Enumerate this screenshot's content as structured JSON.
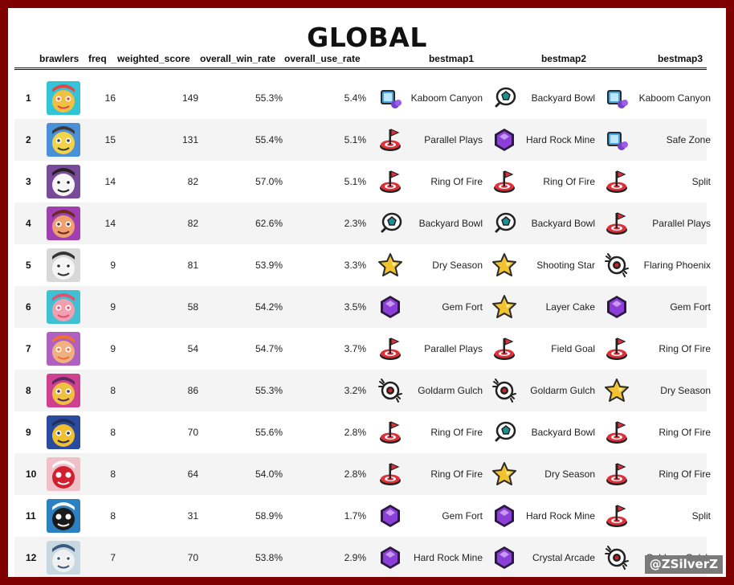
{
  "title": "GLOBAL",
  "watermark": "@ZSilverZ",
  "columns": {
    "brawlers": "brawlers",
    "freq": "freq",
    "weighted_score": "weighted_score",
    "overall_win_rate": "overall_win_rate",
    "overall_use_rate": "overall_use_rate",
    "bestmap1": "bestmap1",
    "bestmap2": "bestmap2",
    "bestmap3": "bestmap3"
  },
  "mode_icons": {
    "heist": {
      "icon": "heist-safe-icon",
      "color": "#4aa8e0"
    },
    "brawl_ball": {
      "icon": "brawl-ball-icon",
      "color": "#1f8f93"
    },
    "hot_zone": {
      "icon": "hot-zone-flag-icon",
      "color": "#e0303a"
    },
    "gem_grab": {
      "icon": "gem-grab-icon",
      "color": "#8c3fd8"
    },
    "bounty": {
      "icon": "bounty-star-icon",
      "color": "#f2c230"
    },
    "knockout": {
      "icon": "knockout-icon",
      "color": "#d32424"
    }
  },
  "rows": [
    {
      "rank": "1",
      "freq": "16",
      "weighted_score": "149",
      "overall_win_rate": "55.3%",
      "overall_use_rate": "5.4%",
      "avatar_colors": [
        "#33c4d8",
        "#f0c040",
        "#e04848"
      ],
      "maps": [
        {
          "name": "Kaboom Canyon",
          "mode": "heist"
        },
        {
          "name": "Backyard Bowl",
          "mode": "brawl_ball"
        },
        {
          "name": "Kaboom Canyon",
          "mode": "heist"
        }
      ]
    },
    {
      "rank": "2",
      "freq": "15",
      "weighted_score": "131",
      "overall_win_rate": "55.4%",
      "overall_use_rate": "5.1%",
      "avatar_colors": [
        "#4a90d8",
        "#f2d34a",
        "#3a3a3a"
      ],
      "maps": [
        {
          "name": "Parallel Plays",
          "mode": "hot_zone"
        },
        {
          "name": "Hard Rock Mine",
          "mode": "gem_grab"
        },
        {
          "name": "Safe Zone",
          "mode": "heist"
        }
      ]
    },
    {
      "rank": "3",
      "freq": "14",
      "weighted_score": "82",
      "overall_win_rate": "57.0%",
      "overall_use_rate": "5.1%",
      "avatar_colors": [
        "#7a4a9a",
        "#f5f5f5",
        "#222222"
      ],
      "maps": [
        {
          "name": "Ring Of Fire",
          "mode": "hot_zone"
        },
        {
          "name": "Ring Of Fire",
          "mode": "hot_zone"
        },
        {
          "name": "Split",
          "mode": "hot_zone"
        }
      ]
    },
    {
      "rank": "4",
      "freq": "14",
      "weighted_score": "82",
      "overall_win_rate": "62.6%",
      "overall_use_rate": "2.3%",
      "avatar_colors": [
        "#a040b0",
        "#f0a070",
        "#6a2a20"
      ],
      "maps": [
        {
          "name": "Backyard Bowl",
          "mode": "brawl_ball"
        },
        {
          "name": "Backyard Bowl",
          "mode": "brawl_ball"
        },
        {
          "name": "Parallel Plays",
          "mode": "hot_zone"
        }
      ]
    },
    {
      "rank": "5",
      "freq": "9",
      "weighted_score": "81",
      "overall_win_rate": "53.9%",
      "overall_use_rate": "3.3%",
      "avatar_colors": [
        "#d8d8d8",
        "#f5f5f5",
        "#333333"
      ],
      "maps": [
        {
          "name": "Dry Season",
          "mode": "bounty"
        },
        {
          "name": "Shooting Star",
          "mode": "bounty"
        },
        {
          "name": "Flaring Phoenix",
          "mode": "knockout"
        }
      ]
    },
    {
      "rank": "6",
      "freq": "9",
      "weighted_score": "58",
      "overall_win_rate": "54.2%",
      "overall_use_rate": "3.5%",
      "avatar_colors": [
        "#40c0d0",
        "#f0a0b0",
        "#e05070"
      ],
      "maps": [
        {
          "name": "Gem Fort",
          "mode": "gem_grab"
        },
        {
          "name": "Layer Cake",
          "mode": "bounty"
        },
        {
          "name": "Gem Fort",
          "mode": "gem_grab"
        }
      ]
    },
    {
      "rank": "7",
      "freq": "9",
      "weighted_score": "54",
      "overall_win_rate": "54.7%",
      "overall_use_rate": "3.7%",
      "avatar_colors": [
        "#b060c0",
        "#f0b080",
        "#f07030"
      ],
      "maps": [
        {
          "name": "Parallel Plays",
          "mode": "hot_zone"
        },
        {
          "name": "Field Goal",
          "mode": "hot_zone"
        },
        {
          "name": "Ring Of Fire",
          "mode": "hot_zone"
        }
      ]
    },
    {
      "rank": "8",
      "freq": "8",
      "weighted_score": "86",
      "overall_win_rate": "55.3%",
      "overall_use_rate": "3.2%",
      "avatar_colors": [
        "#d04090",
        "#f0c040",
        "#5a2a60"
      ],
      "maps": [
        {
          "name": "Goldarm Gulch",
          "mode": "knockout"
        },
        {
          "name": "Goldarm Gulch",
          "mode": "knockout"
        },
        {
          "name": "Dry Season",
          "mode": "bounty"
        }
      ]
    },
    {
      "rank": "9",
      "freq": "8",
      "weighted_score": "70",
      "overall_win_rate": "55.6%",
      "overall_use_rate": "2.8%",
      "avatar_colors": [
        "#2a4aa0",
        "#f0c030",
        "#20305a"
      ],
      "maps": [
        {
          "name": "Ring Of Fire",
          "mode": "hot_zone"
        },
        {
          "name": "Backyard Bowl",
          "mode": "brawl_ball"
        },
        {
          "name": "Ring Of Fire",
          "mode": "hot_zone"
        }
      ]
    },
    {
      "rank": "10",
      "freq": "8",
      "weighted_score": "64",
      "overall_win_rate": "54.0%",
      "overall_use_rate": "2.8%",
      "avatar_colors": [
        "#f0c0c8",
        "#d02030",
        "#f5f5f5"
      ],
      "maps": [
        {
          "name": "Ring Of Fire",
          "mode": "hot_zone"
        },
        {
          "name": "Dry Season",
          "mode": "bounty"
        },
        {
          "name": "Ring Of Fire",
          "mode": "hot_zone"
        }
      ]
    },
    {
      "rank": "11",
      "freq": "8",
      "weighted_score": "31",
      "overall_win_rate": "58.9%",
      "overall_use_rate": "1.7%",
      "avatar_colors": [
        "#2a80c0",
        "#1a1a1a",
        "#f5f5f5"
      ],
      "maps": [
        {
          "name": "Gem Fort",
          "mode": "gem_grab"
        },
        {
          "name": "Hard Rock Mine",
          "mode": "gem_grab"
        },
        {
          "name": "Split",
          "mode": "hot_zone"
        }
      ]
    },
    {
      "rank": "12",
      "freq": "7",
      "weighted_score": "70",
      "overall_win_rate": "53.8%",
      "overall_use_rate": "2.9%",
      "avatar_colors": [
        "#c8d8e0",
        "#f0f0f0",
        "#3a5a80"
      ],
      "maps": [
        {
          "name": "Hard Rock Mine",
          "mode": "gem_grab"
        },
        {
          "name": "Crystal Arcade",
          "mode": "gem_grab"
        },
        {
          "name": "Goldarm Gulch",
          "mode": "knockout"
        }
      ]
    }
  ]
}
